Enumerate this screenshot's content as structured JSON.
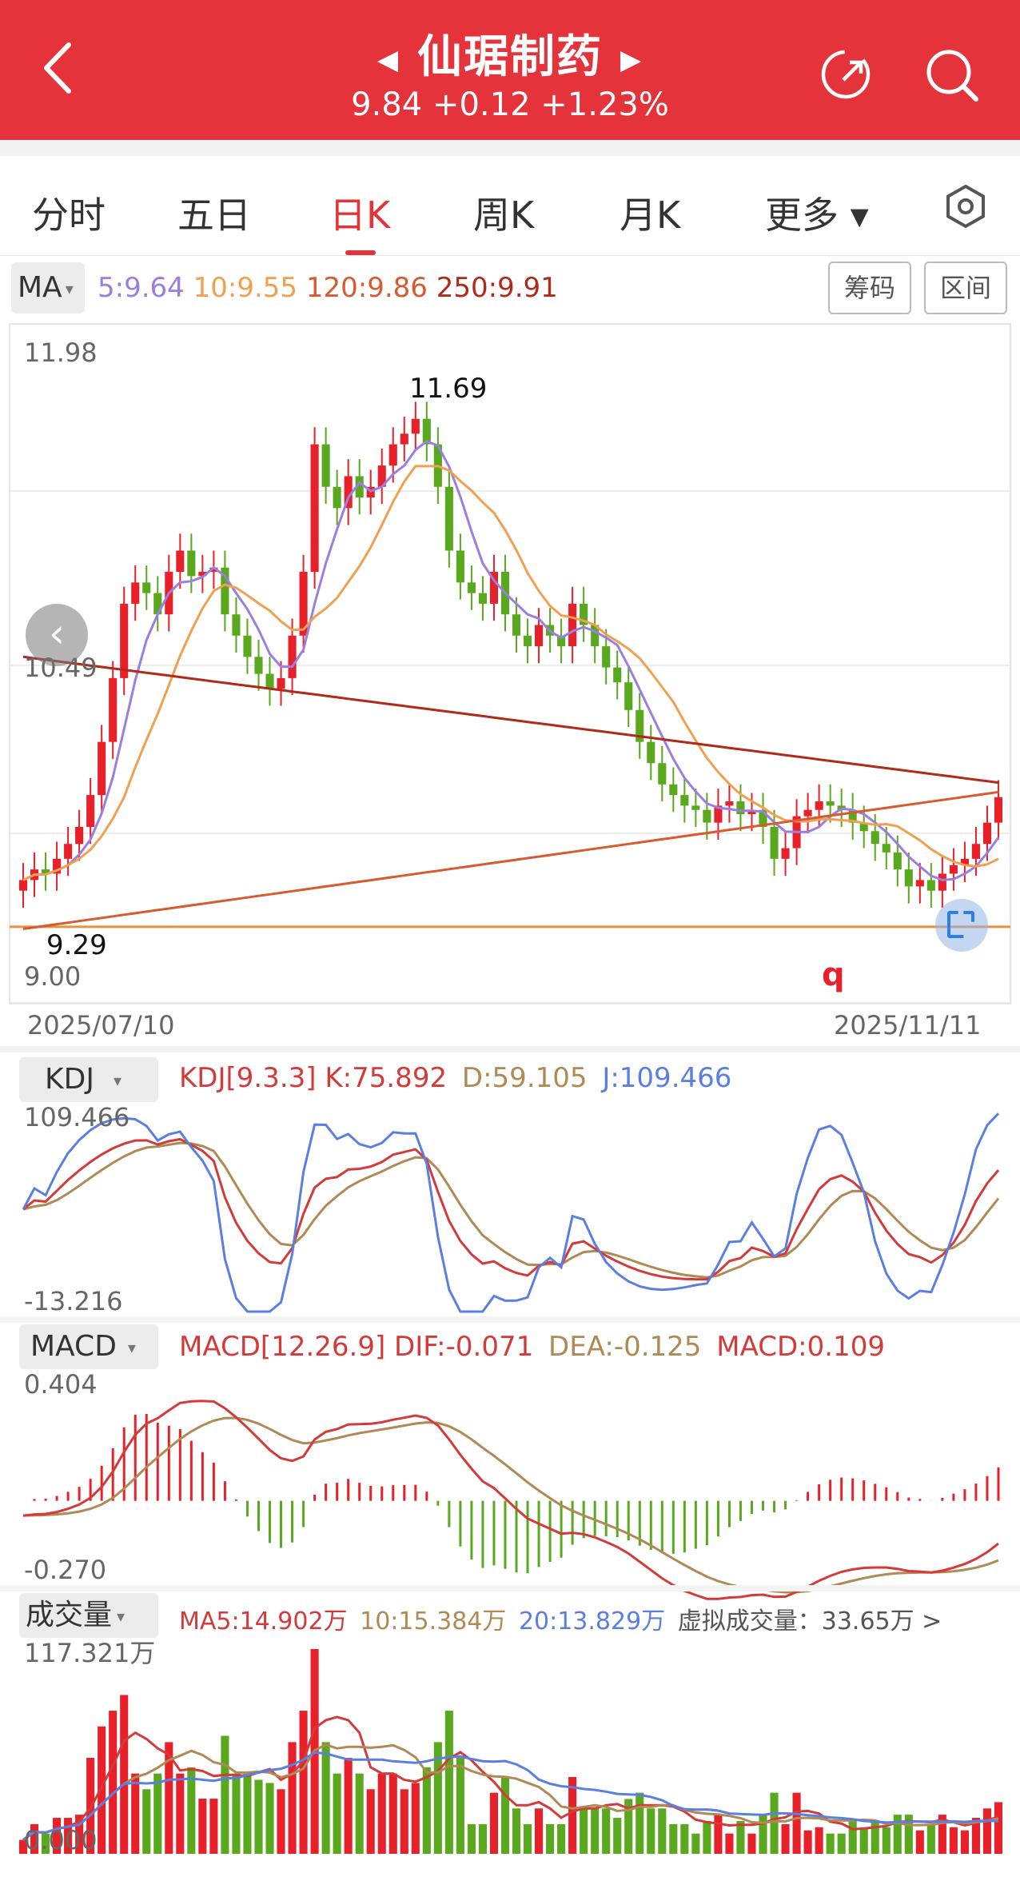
{
  "header": {
    "stock_name": "仙琚制药",
    "prev_arrow": "◀",
    "next_arrow": "▶",
    "quote": "9.84 +0.12 +1.23%",
    "bg_color": "#e5333b"
  },
  "tabs": [
    {
      "label": "分时"
    },
    {
      "label": "五日"
    },
    {
      "label": "日K"
    },
    {
      "label": "周K"
    },
    {
      "label": "月K"
    },
    {
      "label": "更多 ▾"
    }
  ],
  "ma_bar": {
    "dropdown": "MA",
    "ma5": "5:9.64",
    "ma10": "10:9.55",
    "ma120": "120:9.86",
    "ma250": "250:9.91",
    "chips_button": "筹码",
    "range_button": "区间"
  },
  "kline": {
    "y_max_label": "11.98",
    "y_mid_label": "10.49",
    "y_min_label": "9.00",
    "high_mark": "11.69",
    "low_mark": "9.29",
    "date_start": "2025/07/10",
    "date_end": "2025/11/11",
    "signal_letter": "q"
  },
  "kdj": {
    "dropdown": "KDJ",
    "params": "KDJ[9.3.3]",
    "k": "K:75.892",
    "d": "D:59.105",
    "j": "J:109.466",
    "y_max": "109.466",
    "y_min": "-13.216"
  },
  "macd": {
    "dropdown": "MACD",
    "params": "MACD[12.26.9]",
    "dif": "DIF:-0.071",
    "dea": "DEA:-0.125",
    "macd": "MACD:0.109",
    "y_max": "0.404",
    "y_min": "-0.270"
  },
  "volume": {
    "dropdown": "成交量",
    "ma5": "MA5:14.902万",
    "ma10": "10:15.384万",
    "ma20": "20:13.829万",
    "virtual": "虚拟成交量：33.65万 >",
    "y_max": "117.321万",
    "y_min": "0.000"
  },
  "colors": {
    "up": "#e8202a",
    "down": "#5aa81e",
    "ma5": "#9a7fe0",
    "ma10": "#f0a050",
    "ma120": "#d85a30",
    "ma250": "#b02a1a",
    "k": "#d43a3a",
    "d": "#b08a55",
    "j": "#5a7fe0"
  },
  "chart_data": {
    "type": "candlestick",
    "title": "",
    "x_range": [
      "2025/07/10",
      "2025/11/11"
    ],
    "y_range": [
      9.0,
      11.98
    ],
    "high": 11.69,
    "low": 9.29,
    "close": [
      9.45,
      9.5,
      9.48,
      9.55,
      9.62,
      9.7,
      9.85,
      10.1,
      10.4,
      10.75,
      10.85,
      10.8,
      10.7,
      10.9,
      11.0,
      10.88,
      10.9,
      10.92,
      10.7,
      10.6,
      10.5,
      10.42,
      10.35,
      10.4,
      10.6,
      10.9,
      11.5,
      11.3,
      11.2,
      11.35,
      11.25,
      11.3,
      11.4,
      11.5,
      11.55,
      11.62,
      11.5,
      11.3,
      11.0,
      10.85,
      10.8,
      10.75,
      10.9,
      10.7,
      10.6,
      10.55,
      10.65,
      10.6,
      10.55,
      10.75,
      10.65,
      10.55,
      10.45,
      10.38,
      10.25,
      10.1,
      10.0,
      9.9,
      9.85,
      9.8,
      9.78,
      9.72,
      9.8,
      9.82,
      9.76,
      9.78,
      9.7,
      9.55,
      9.6,
      9.75,
      9.78,
      9.82,
      9.8,
      9.78,
      9.72,
      9.68,
      9.62,
      9.58,
      9.5,
      9.42,
      9.45,
      9.4,
      9.48,
      9.52,
      9.55,
      9.62,
      9.72,
      9.84
    ]
  }
}
